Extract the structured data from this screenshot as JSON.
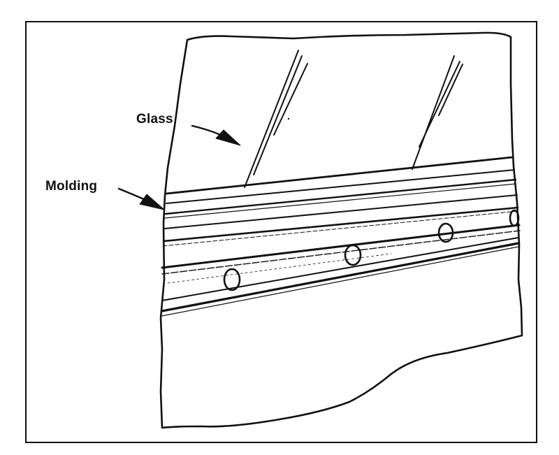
{
  "figure": {
    "callouts": {
      "glass": "Glass",
      "molding": "Molding"
    },
    "colors": {
      "ink": "#111111",
      "paper": "#ffffff"
    }
  }
}
